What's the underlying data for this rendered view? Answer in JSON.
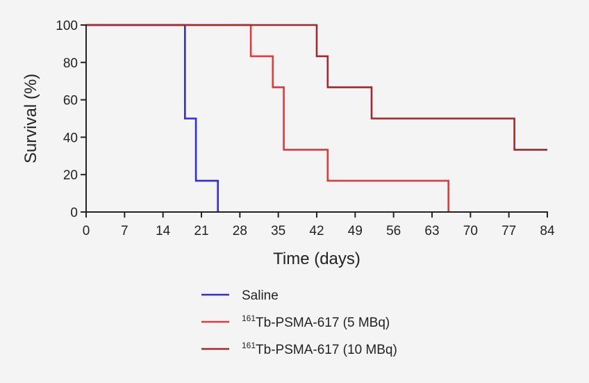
{
  "chart_data": {
    "type": "line",
    "subtype": "kaplan-meier-step",
    "title": "",
    "xlabel": "Time (days)",
    "ylabel": "Survival (%)",
    "xlim": [
      0,
      84
    ],
    "ylim": [
      0,
      100
    ],
    "xticks": [
      0,
      7,
      14,
      21,
      28,
      35,
      42,
      49,
      56,
      63,
      70,
      77,
      84
    ],
    "yticks": [
      0,
      20,
      40,
      60,
      80,
      100
    ],
    "grid": false,
    "legend_position": "bottom",
    "series": [
      {
        "name": "Saline",
        "name_sup": "",
        "name_main": "Saline",
        "color": "#2b2fe0",
        "points": [
          [
            0,
            100
          ],
          [
            18,
            100
          ],
          [
            18,
            50
          ],
          [
            20,
            50
          ],
          [
            20,
            16.7
          ],
          [
            24,
            16.7
          ],
          [
            24,
            0
          ]
        ]
      },
      {
        "name": "161Tb-PSMA-617 (5 MBq)",
        "name_sup": "161",
        "name_main": "Tb-PSMA-617 (5 MBq)",
        "color": "#e03a3a",
        "points": [
          [
            0,
            100
          ],
          [
            30,
            100
          ],
          [
            30,
            83.3
          ],
          [
            34,
            83.3
          ],
          [
            34,
            66.7
          ],
          [
            36,
            66.7
          ],
          [
            36,
            33.3
          ],
          [
            44,
            33.3
          ],
          [
            44,
            16.7
          ],
          [
            66,
            16.7
          ],
          [
            66,
            0
          ]
        ]
      },
      {
        "name": "161Tb-PSMA-617 (10 MBq)",
        "name_sup": "161",
        "name_main": "Tb-PSMA-617 (10 MBq)",
        "color": "#a3282d",
        "points": [
          [
            0,
            100
          ],
          [
            42,
            100
          ],
          [
            42,
            83.3
          ],
          [
            44,
            83.3
          ],
          [
            44,
            66.7
          ],
          [
            52,
            66.7
          ],
          [
            52,
            50
          ],
          [
            78,
            50
          ],
          [
            78,
            33.3
          ],
          [
            84,
            33.3
          ]
        ]
      }
    ]
  }
}
